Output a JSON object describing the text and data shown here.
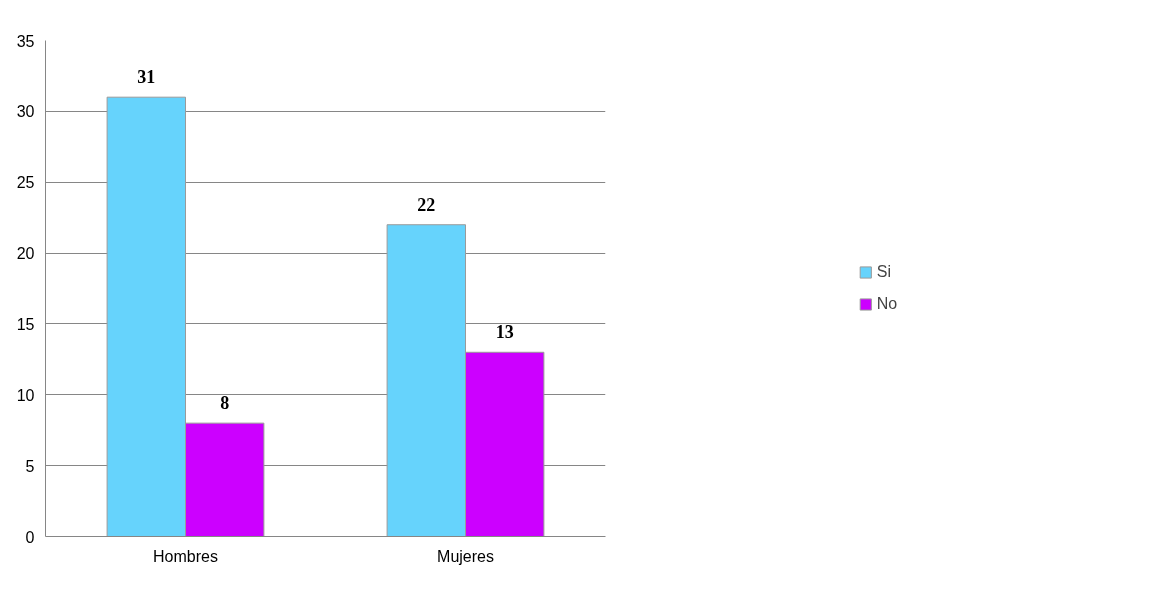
{
  "chart_data": {
    "type": "bar",
    "categories": [
      "Hombres",
      "Mujeres"
    ],
    "series": [
      {
        "name": "Si",
        "color": "#66d3fc",
        "values": [
          31,
          22
        ]
      },
      {
        "name": "No",
        "color": "#cc00ff",
        "values": [
          8,
          13
        ]
      }
    ],
    "ylim": [
      0,
      35
    ],
    "yticks": [
      0,
      5,
      10,
      15,
      20,
      25,
      30,
      35
    ],
    "grid": "y",
    "legend": "right",
    "data_labels": true
  }
}
